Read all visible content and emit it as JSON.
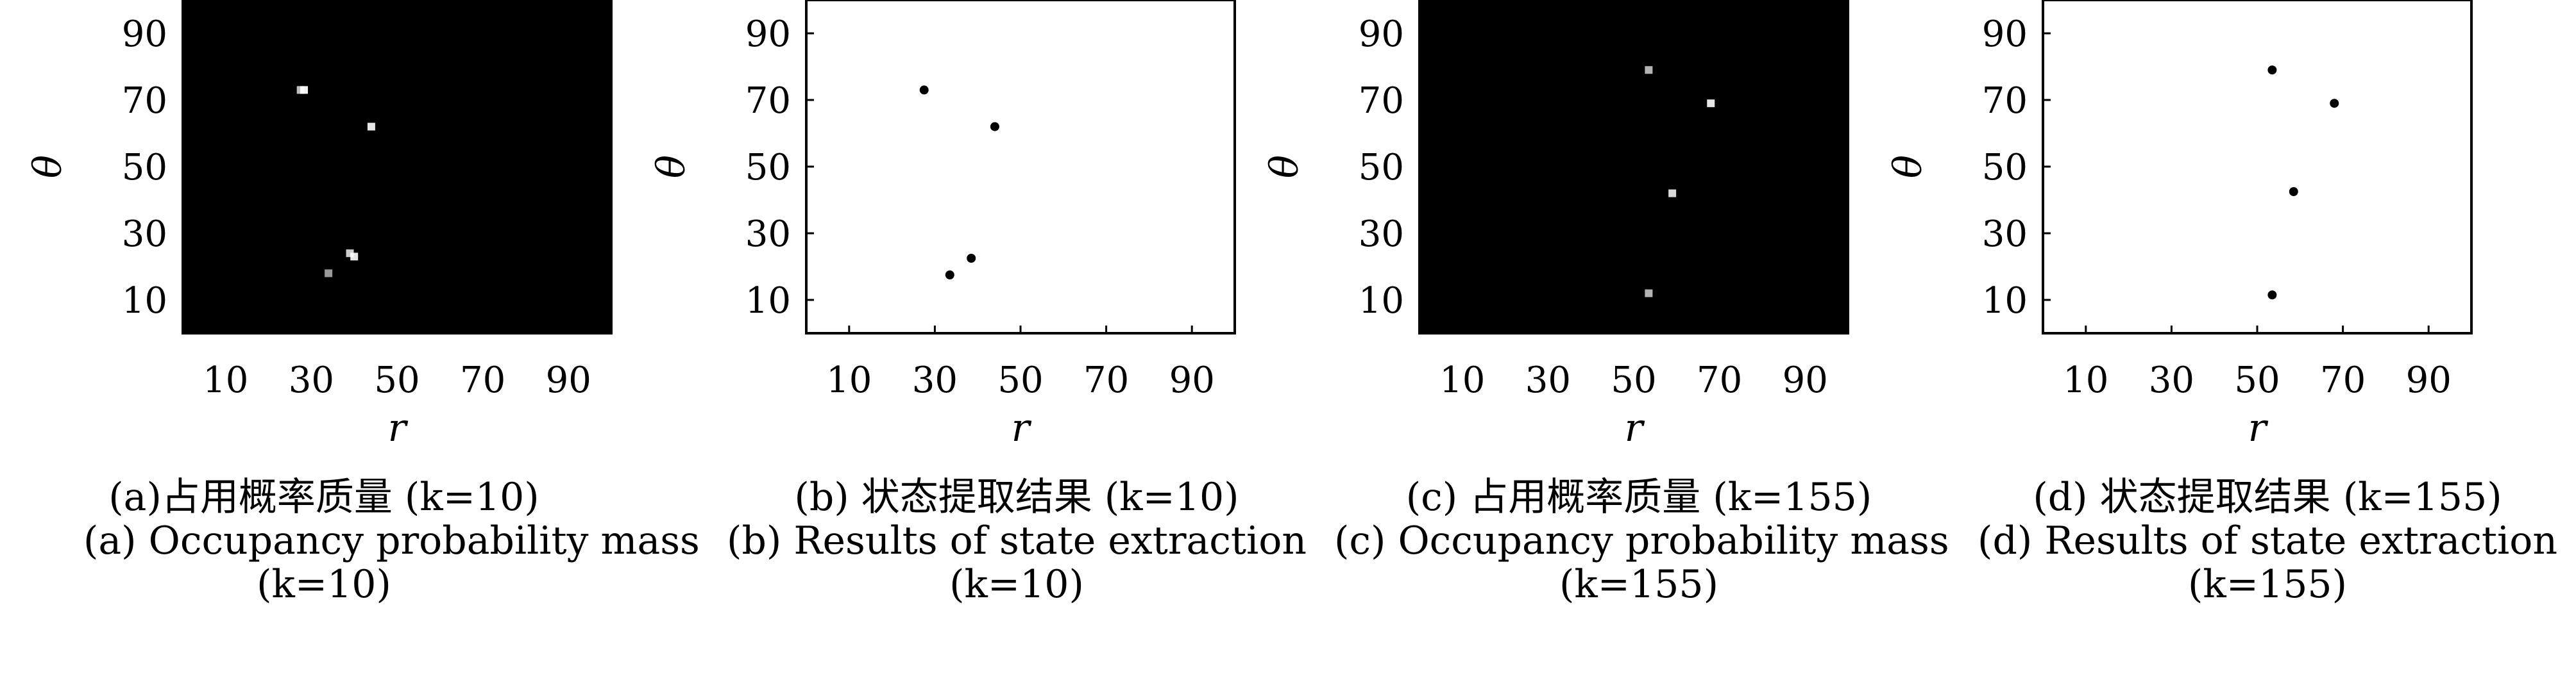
{
  "chart_data": [
    {
      "type": "heatmap",
      "caption_cn": "(a)占用概率质量 (k=10)",
      "caption_en_line1": "(a) Occupancy probability mass",
      "caption_en_line2": "(k=10)",
      "xlabel": "r",
      "ylabel": "θ",
      "xlim": [
        0,
        100
      ],
      "ylim": [
        0,
        100
      ],
      "xticks": [
        10,
        30,
        50,
        70,
        90
      ],
      "yticks": [
        10,
        30,
        50,
        70,
        90
      ],
      "background": "#000000",
      "point_color": "#ffffff",
      "points": [
        {
          "x": 27.5,
          "y": 73,
          "intensity": 0.75
        },
        {
          "x": 28.3,
          "y": 73,
          "intensity": 0.95
        },
        {
          "x": 44,
          "y": 62,
          "intensity": 0.9
        },
        {
          "x": 39,
          "y": 24,
          "intensity": 0.8
        },
        {
          "x": 40,
          "y": 23,
          "intensity": 0.9
        },
        {
          "x": 34,
          "y": 18,
          "intensity": 0.6
        }
      ]
    },
    {
      "type": "scatter",
      "caption_cn": "(b) 状态提取结果 (k=10)",
      "caption_en_line1": "(b) Results of state extraction",
      "caption_en_line2": "(k=10)",
      "xlabel": "r",
      "ylabel": "θ",
      "xlim": [
        0,
        100
      ],
      "ylim": [
        0,
        100
      ],
      "xticks": [
        10,
        30,
        50,
        70,
        90
      ],
      "yticks": [
        10,
        30,
        50,
        70,
        90
      ],
      "background": "#ffffff",
      "point_color": "#000000",
      "points": [
        {
          "x": 27.5,
          "y": 73
        },
        {
          "x": 44,
          "y": 62
        },
        {
          "x": 38.5,
          "y": 22.5
        },
        {
          "x": 33.5,
          "y": 17.5
        }
      ]
    },
    {
      "type": "heatmap",
      "caption_cn": "(c) 占用概率质量 (k=155)",
      "caption_en_line1": "(c) Occupancy probability mass",
      "caption_en_line2": "(k=155)",
      "xlabel": "r",
      "ylabel": "θ",
      "xlim": [
        0,
        100
      ],
      "ylim": [
        0,
        100
      ],
      "xticks": [
        10,
        30,
        50,
        70,
        90
      ],
      "yticks": [
        10,
        30,
        50,
        70,
        90
      ],
      "background": "#000000",
      "point_color": "#ffffff",
      "points": [
        {
          "x": 53.5,
          "y": 79,
          "intensity": 0.7
        },
        {
          "x": 68,
          "y": 69,
          "intensity": 0.9
        },
        {
          "x": 59,
          "y": 42,
          "intensity": 0.85
        },
        {
          "x": 53.5,
          "y": 12,
          "intensity": 0.7
        }
      ]
    },
    {
      "type": "scatter",
      "caption_cn": "(d) 状态提取结果 (k=155)",
      "caption_en_line1": "(d) Results of state extraction",
      "caption_en_line2": "(k=155)",
      "xlabel": "r",
      "ylabel": "θ",
      "xlim": [
        0,
        100
      ],
      "ylim": [
        0,
        100
      ],
      "xticks": [
        10,
        30,
        50,
        70,
        90
      ],
      "yticks": [
        10,
        30,
        50,
        70,
        90
      ],
      "background": "#ffffff",
      "point_color": "#000000",
      "points": [
        {
          "x": 53.5,
          "y": 79
        },
        {
          "x": 68,
          "y": 69
        },
        {
          "x": 58.5,
          "y": 42.5
        },
        {
          "x": 53.5,
          "y": 11.5
        }
      ]
    }
  ]
}
